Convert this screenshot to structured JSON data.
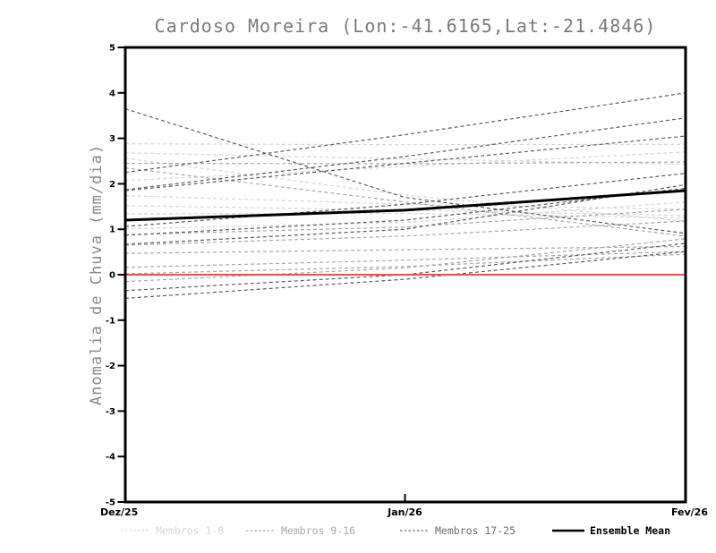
{
  "title": "Cardoso Moreira (Lon:-41.6165,Lat:-21.4846)",
  "chart_data": {
    "type": "line",
    "title": "Cardoso Moreira (Lon:-41.6165,Lat:-21.4846)",
    "ylabel": "Anomalia de Chuva (mm/dia)",
    "xlabel": "",
    "x_categories": [
      "Dez/25",
      "Jan/26",
      "Fev/26"
    ],
    "ylim": [
      -5,
      5
    ],
    "yticks": [
      5,
      4,
      3,
      2,
      1,
      0,
      -1,
      -2,
      -3,
      -4,
      -5
    ],
    "grid": false,
    "legend_position": "bottom",
    "zero_line": {
      "value": 0,
      "color": "#f04f4f"
    },
    "groups": [
      {
        "name": "Membros 1-8",
        "color": "#d6d6d6",
        "line_style": "dashed",
        "members": [
          [
            2.88,
            2.86,
            2.87
          ],
          [
            2.68,
            2.55,
            2.43
          ],
          [
            2.56,
            1.75,
            1.18
          ],
          [
            2.07,
            2.38,
            2.7
          ],
          [
            1.74,
            1.55,
            1.44
          ],
          [
            1.52,
            1.42,
            1.3
          ],
          [
            1.34,
            1.35,
            1.25
          ],
          [
            1.01,
            1.15,
            1.6
          ]
        ]
      },
      {
        "name": "Membros 9-16",
        "color": "#a8a8a8",
        "line_style": "dashed",
        "members": [
          [
            2.45,
            2.44,
            2.48
          ],
          [
            2.35,
            1.6,
            0.85
          ],
          [
            0.47,
            0.55,
            0.62
          ],
          [
            0.88,
            1.05,
            1.44
          ],
          [
            0.65,
            0.85,
            1.18
          ],
          [
            0.16,
            0.32,
            0.51
          ],
          [
            0.02,
            0.18,
            0.45
          ],
          [
            -0.15,
            0.15,
            0.79
          ]
        ]
      },
      {
        "name": "Membros 17-25",
        "color": "#5f5f5f",
        "line_style": "dashed",
        "members": [
          [
            3.65,
            1.7,
            0.91
          ],
          [
            2.25,
            3.08,
            4.0
          ],
          [
            1.85,
            2.45,
            3.05
          ],
          [
            1.87,
            2.6,
            3.45
          ],
          [
            1.06,
            1.55,
            2.23
          ],
          [
            0.87,
            1.2,
            1.9
          ],
          [
            0.67,
            1.0,
            1.98
          ],
          [
            -0.35,
            0.0,
            0.69
          ],
          [
            -0.52,
            -0.1,
            0.51
          ]
        ]
      }
    ],
    "ensemble_mean": {
      "name": "Ensemble Mean",
      "color": "#000000",
      "values": [
        1.2,
        1.42,
        1.85
      ]
    }
  },
  "legend": {
    "items": [
      {
        "label": "Membros 1-8",
        "color": "#d6d6d6",
        "line_style": "dashed"
      },
      {
        "label": "Membros 9-16",
        "color": "#a8a8a8",
        "line_style": "dashed"
      },
      {
        "label": "Membros 17-25",
        "color": "#6e6e6e",
        "line_style": "dashed"
      },
      {
        "label": "Ensemble Mean",
        "color": "#000000",
        "line_style": "solid"
      }
    ]
  }
}
